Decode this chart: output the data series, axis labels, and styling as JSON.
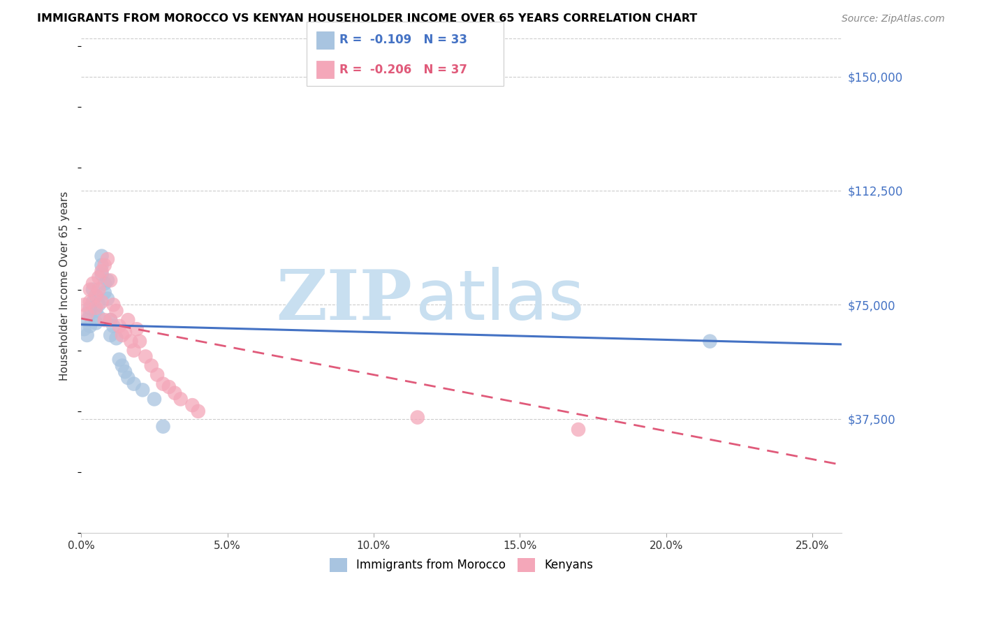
{
  "title": "IMMIGRANTS FROM MOROCCO VS KENYAN HOUSEHOLDER INCOME OVER 65 YEARS CORRELATION CHART",
  "source": "Source: ZipAtlas.com",
  "ylabel": "Householder Income Over 65 years",
  "xlabel_ticks": [
    "0.0%",
    "5.0%",
    "10.0%",
    "15.0%",
    "20.0%",
    "25.0%"
  ],
  "xlabel_vals": [
    0.0,
    0.05,
    0.1,
    0.15,
    0.2,
    0.25
  ],
  "ytick_labels": [
    "$37,500",
    "$75,000",
    "$112,500",
    "$150,000"
  ],
  "ytick_vals": [
    37500,
    75000,
    112500,
    150000
  ],
  "ylim": [
    0,
    162500
  ],
  "xlim": [
    0.0,
    0.26
  ],
  "morocco_color": "#a8c4e0",
  "kenyan_color": "#f4a7b9",
  "morocco_line_color": "#4472c4",
  "kenyan_line_color": "#e05a7a",
  "watermark_zip_color": "#c8dff0",
  "watermark_atlas_color": "#c8dff0",
  "morocco_R": "-0.109",
  "morocco_N": "33",
  "kenyan_R": "-0.206",
  "kenyan_N": "37",
  "legend_r_color": "#4472c4",
  "legend_r2_color": "#e05a7a",
  "morocco_x": [
    0.001,
    0.002,
    0.002,
    0.003,
    0.003,
    0.003,
    0.004,
    0.004,
    0.005,
    0.005,
    0.005,
    0.006,
    0.006,
    0.007,
    0.007,
    0.007,
    0.008,
    0.008,
    0.009,
    0.009,
    0.01,
    0.01,
    0.011,
    0.012,
    0.013,
    0.014,
    0.015,
    0.016,
    0.018,
    0.021,
    0.025,
    0.028,
    0.215
  ],
  "morocco_y": [
    67000,
    65000,
    70000,
    72000,
    74000,
    68000,
    76000,
    80000,
    78000,
    73000,
    69000,
    75000,
    71000,
    85000,
    88000,
    91000,
    82000,
    79000,
    77000,
    83000,
    70000,
    65000,
    68000,
    64000,
    57000,
    55000,
    53000,
    51000,
    49000,
    47000,
    44000,
    35000,
    63000
  ],
  "kenyan_x": [
    0.001,
    0.002,
    0.003,
    0.003,
    0.004,
    0.005,
    0.005,
    0.006,
    0.006,
    0.007,
    0.007,
    0.008,
    0.008,
    0.009,
    0.01,
    0.01,
    0.011,
    0.012,
    0.013,
    0.014,
    0.015,
    0.016,
    0.017,
    0.018,
    0.019,
    0.02,
    0.022,
    0.024,
    0.026,
    0.028,
    0.03,
    0.032,
    0.034,
    0.038,
    0.04,
    0.115,
    0.17
  ],
  "kenyan_y": [
    75000,
    72000,
    80000,
    76000,
    82000,
    78000,
    74000,
    84000,
    80000,
    86000,
    76000,
    70000,
    88000,
    90000,
    83000,
    70000,
    75000,
    73000,
    68000,
    65000,
    66000,
    70000,
    63000,
    60000,
    67000,
    63000,
    58000,
    55000,
    52000,
    49000,
    48000,
    46000,
    44000,
    42000,
    40000,
    38000,
    34000
  ]
}
